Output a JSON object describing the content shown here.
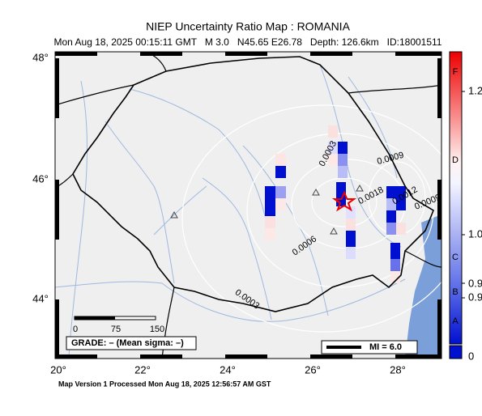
{
  "header": {
    "title": "NIEP Uncertainty Ratio Map : ROMANIA",
    "subtitle": "Mon Aug 18, 2025 00:15:11 GMT   M 3.0   N45.65 E26.78   Depth: 126.6km   ID:18001511"
  },
  "axes": {
    "lat_labels": [
      "48°",
      "46°",
      "44°"
    ],
    "lon_labels": [
      "20°",
      "22°",
      "24°",
      "26°",
      "28°"
    ]
  },
  "contour_labels": [
    "0.0003",
    "0.0009",
    "0.0018",
    "0.0012",
    "0.0009",
    "0.0006",
    "0.0003"
  ],
  "scale_bar": {
    "labels": [
      "0",
      "75",
      "150"
    ]
  },
  "grade": "GRADE: – (Mean sigma: –)",
  "legend": {
    "mi": "MI = 6.0"
  },
  "colorbar": {
    "grades": [
      "F",
      "D",
      "C",
      "B",
      "A"
    ],
    "ticks": [
      "1.2",
      "1.0",
      "0.9",
      "0.9",
      "0"
    ]
  },
  "footer": "Map Version 1 Processed Mon Aug 18, 2025 12:56:57 AM GST"
}
